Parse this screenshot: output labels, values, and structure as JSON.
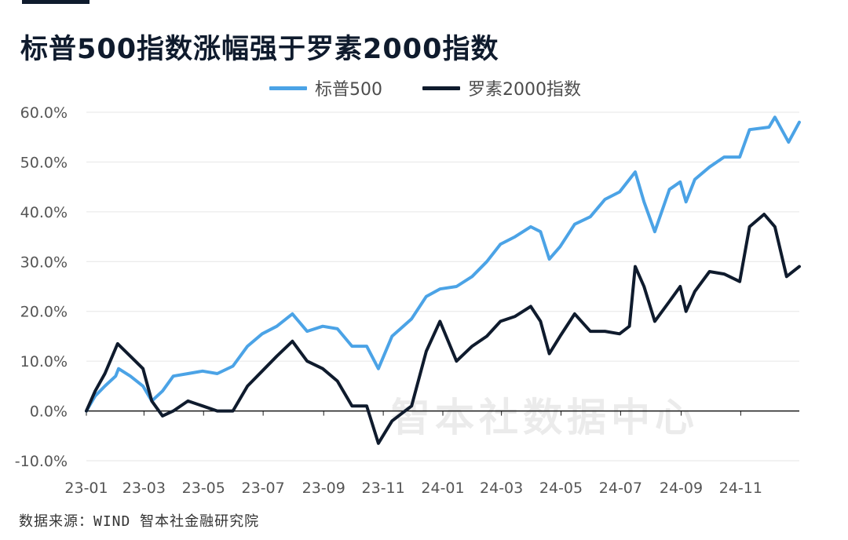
{
  "title": "标普500指数涨幅强于罗素2000指数",
  "source": "数据来源：WIND 智本社金融研究院",
  "watermark": "智本社数据中心",
  "chart_data": {
    "type": "line",
    "title": "标普500指数涨幅强于罗素2000指数",
    "ylim": [
      -10,
      60
    ],
    "yticks": [
      "-10.0%",
      "0.0%",
      "10.0%",
      "20.0%",
      "30.0%",
      "40.0%",
      "50.0%",
      "60.0%"
    ],
    "x_tick_labels": [
      "23-01",
      "23-03",
      "23-05",
      "23-07",
      "23-09",
      "23-11",
      "24-01",
      "24-03",
      "24-05",
      "24-07",
      "24-09",
      "24-11"
    ],
    "grid": true,
    "legend_position": "top-center",
    "series": [
      {
        "name": "标普500",
        "color": "#4ba3e6",
        "points": [
          [
            "2023-01-01",
            0
          ],
          [
            "2023-01-10",
            3
          ],
          [
            "2023-01-20",
            5
          ],
          [
            "2023-01-31",
            7
          ],
          [
            "2023-02-03",
            8.5
          ],
          [
            "2023-02-15",
            7
          ],
          [
            "2023-02-28",
            5
          ],
          [
            "2023-03-09",
            2
          ],
          [
            "2023-03-20",
            4
          ],
          [
            "2023-03-31",
            7
          ],
          [
            "2023-04-15",
            7.5
          ],
          [
            "2023-04-30",
            8
          ],
          [
            "2023-05-15",
            7.5
          ],
          [
            "2023-05-31",
            9
          ],
          [
            "2023-06-15",
            13
          ],
          [
            "2023-06-30",
            15.5
          ],
          [
            "2023-07-15",
            17
          ],
          [
            "2023-07-31",
            19.5
          ],
          [
            "2023-08-15",
            16
          ],
          [
            "2023-08-31",
            17
          ],
          [
            "2023-09-15",
            16.5
          ],
          [
            "2023-09-30",
            13
          ],
          [
            "2023-10-15",
            13
          ],
          [
            "2023-10-27",
            8.5
          ],
          [
            "2023-11-10",
            15
          ],
          [
            "2023-11-30",
            18.5
          ],
          [
            "2023-12-15",
            23
          ],
          [
            "2023-12-29",
            24.5
          ],
          [
            "2024-01-15",
            25
          ],
          [
            "2024-01-31",
            27
          ],
          [
            "2024-02-15",
            30
          ],
          [
            "2024-02-29",
            33.5
          ],
          [
            "2024-03-15",
            35
          ],
          [
            "2024-03-31",
            37
          ],
          [
            "2024-04-10",
            36
          ],
          [
            "2024-04-19",
            30.5
          ],
          [
            "2024-04-30",
            33
          ],
          [
            "2024-05-15",
            37.5
          ],
          [
            "2024-05-31",
            39
          ],
          [
            "2024-06-15",
            42.5
          ],
          [
            "2024-06-30",
            44
          ],
          [
            "2024-07-16",
            48
          ],
          [
            "2024-07-25",
            42
          ],
          [
            "2024-08-05",
            36
          ],
          [
            "2024-08-20",
            44.5
          ],
          [
            "2024-08-31",
            46
          ],
          [
            "2024-09-06",
            42
          ],
          [
            "2024-09-15",
            46.5
          ],
          [
            "2024-09-30",
            49
          ],
          [
            "2024-10-15",
            51
          ],
          [
            "2024-10-31",
            51
          ],
          [
            "2024-11-10",
            56.5
          ],
          [
            "2024-11-30",
            57
          ],
          [
            "2024-12-06",
            59
          ],
          [
            "2024-12-20",
            54
          ],
          [
            "2024-12-31",
            58
          ]
        ]
      },
      {
        "name": "罗素2000指数",
        "color": "#0f1b2d",
        "points": [
          [
            "2023-01-01",
            0
          ],
          [
            "2023-01-10",
            4
          ],
          [
            "2023-01-20",
            7.5
          ],
          [
            "2023-02-02",
            13.5
          ],
          [
            "2023-02-15",
            11
          ],
          [
            "2023-02-28",
            8.5
          ],
          [
            "2023-03-09",
            2
          ],
          [
            "2023-03-20",
            -1
          ],
          [
            "2023-03-31",
            0
          ],
          [
            "2023-04-15",
            2
          ],
          [
            "2023-04-30",
            1
          ],
          [
            "2023-05-15",
            0
          ],
          [
            "2023-05-31",
            0
          ],
          [
            "2023-06-15",
            5
          ],
          [
            "2023-06-30",
            8
          ],
          [
            "2023-07-15",
            11
          ],
          [
            "2023-07-31",
            14
          ],
          [
            "2023-08-15",
            10
          ],
          [
            "2023-08-31",
            8.5
          ],
          [
            "2023-09-15",
            6
          ],
          [
            "2023-09-30",
            1
          ],
          [
            "2023-10-15",
            1
          ],
          [
            "2023-10-27",
            -6.5
          ],
          [
            "2023-11-10",
            -2
          ],
          [
            "2023-11-30",
            1
          ],
          [
            "2023-12-15",
            12
          ],
          [
            "2023-12-29",
            18
          ],
          [
            "2024-01-15",
            10
          ],
          [
            "2024-01-31",
            13
          ],
          [
            "2024-02-15",
            15
          ],
          [
            "2024-02-29",
            18
          ],
          [
            "2024-03-15",
            19
          ],
          [
            "2024-03-31",
            21
          ],
          [
            "2024-04-10",
            18
          ],
          [
            "2024-04-19",
            11.5
          ],
          [
            "2024-04-30",
            15
          ],
          [
            "2024-05-15",
            19.5
          ],
          [
            "2024-05-31",
            16
          ],
          [
            "2024-06-15",
            16
          ],
          [
            "2024-06-30",
            15.5
          ],
          [
            "2024-07-10",
            17
          ],
          [
            "2024-07-16",
            29
          ],
          [
            "2024-07-25",
            25
          ],
          [
            "2024-08-05",
            18
          ],
          [
            "2024-08-20",
            22
          ],
          [
            "2024-08-31",
            25
          ],
          [
            "2024-09-06",
            20
          ],
          [
            "2024-09-15",
            24
          ],
          [
            "2024-09-30",
            28
          ],
          [
            "2024-10-15",
            27.5
          ],
          [
            "2024-10-31",
            26
          ],
          [
            "2024-11-10",
            37
          ],
          [
            "2024-11-25",
            39.5
          ],
          [
            "2024-12-06",
            37
          ],
          [
            "2024-12-18",
            27
          ],
          [
            "2024-12-31",
            29
          ]
        ]
      }
    ]
  }
}
